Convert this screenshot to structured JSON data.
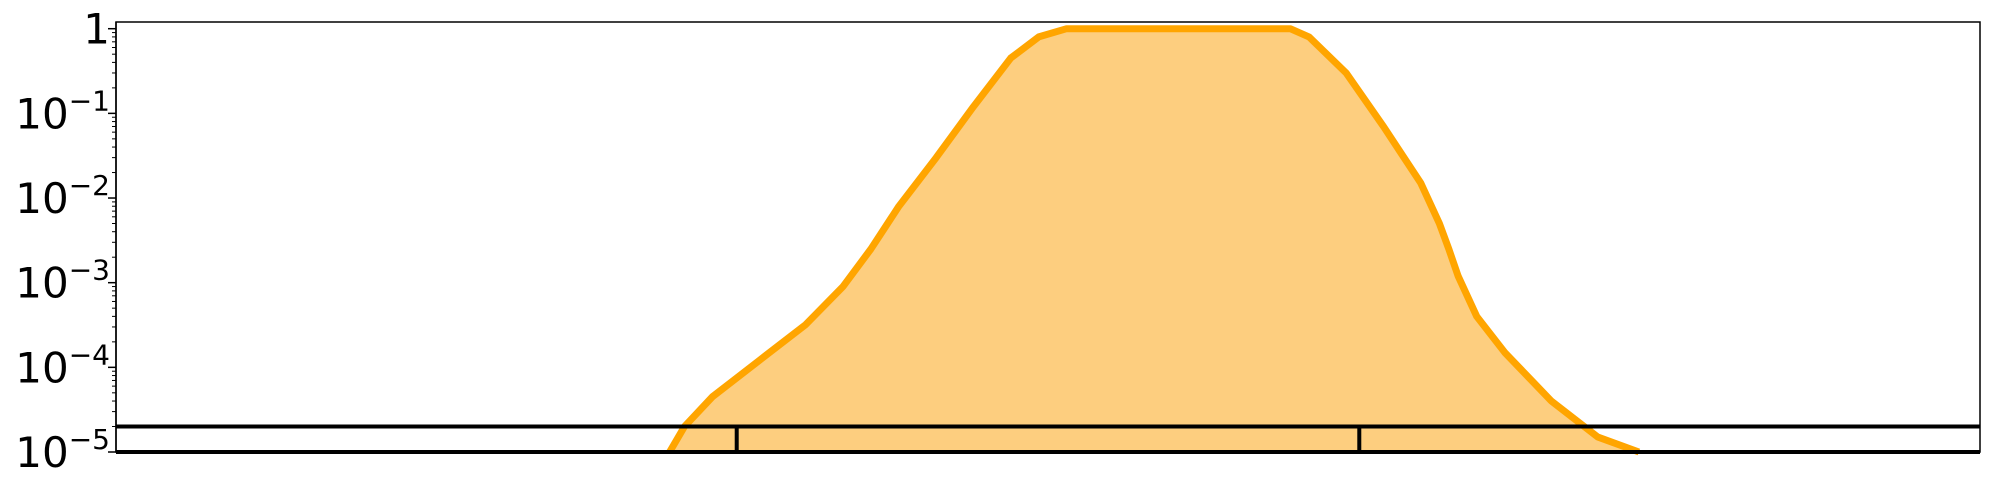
{
  "chart_data": {
    "type": "area",
    "title": "",
    "xlabel": "",
    "ylabel": "",
    "y_scale": "log",
    "ylim": [
      1e-05,
      1.2
    ],
    "xlim": [
      0,
      100
    ],
    "grid": false,
    "legend": "none",
    "y_ticks": [
      {
        "value": 1,
        "label": "1"
      },
      {
        "value": 0.1,
        "base": "10",
        "exp": "−1"
      },
      {
        "value": 0.01,
        "base": "10",
        "exp": "−2"
      },
      {
        "value": 0.001,
        "base": "10",
        "exp": "−3"
      },
      {
        "value": 0.0001,
        "base": "10",
        "exp": "−4"
      },
      {
        "value": 1e-05,
        "base": "10",
        "exp": "−5"
      }
    ],
    "series": [
      {
        "x": [
          29.7,
          30.5,
          32.0,
          34.5,
          37.0,
          39.0,
          40.5,
          42.0,
          44.0,
          46.0,
          48.0,
          49.5,
          51.0,
          53.0,
          55.0,
          56.3,
          58.0,
          59.0,
          59.6,
          60.0,
          61.0,
          62.0,
          63.0,
          64.0,
          66.0,
          68.0,
          70.0,
          71.0,
          71.5,
          72.0,
          73.0,
          74.5,
          77.0,
          79.5,
          81.7
        ],
        "y": [
          1e-05,
          2e-05,
          4.5e-05,
          0.00012,
          0.00032,
          0.0009,
          0.0025,
          0.008,
          0.03,
          0.12,
          0.45,
          0.8,
          1.0,
          1.0,
          1.0,
          1.0,
          1.0,
          1.0,
          1.0,
          1.0,
          1.0,
          1.0,
          1.0,
          0.8,
          0.3,
          0.07,
          0.015,
          0.005,
          0.0025,
          0.0012,
          0.0004,
          0.00015,
          4e-05,
          1.5e-05,
          1e-05
        ],
        "color": "#FFA500",
        "fill_color": "#FDCE7F"
      }
    ],
    "reference_line": {
      "y": 2e-05,
      "color": "#000000"
    },
    "markers_x": [
      33.3,
      66.7
    ]
  }
}
